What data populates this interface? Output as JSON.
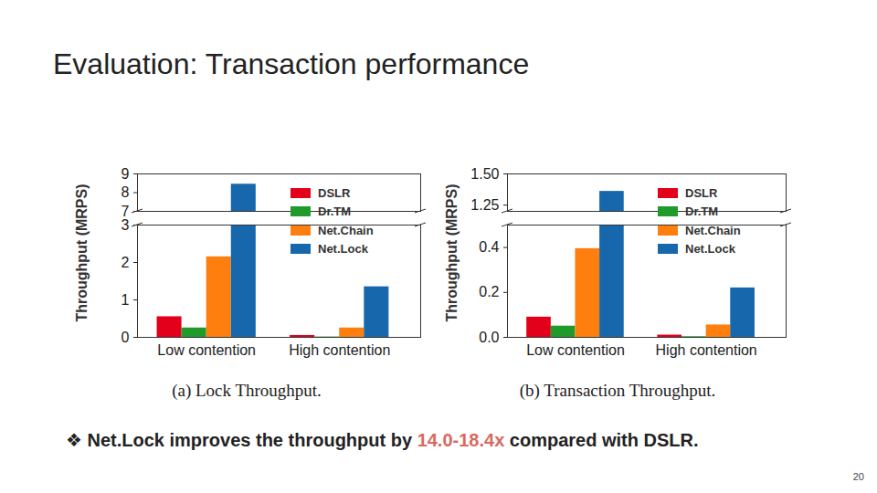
{
  "title": "Evaluation: Transaction performance",
  "note": {
    "text": "❖ Net.Lock improves the throughput by ",
    "highlight": "14.0-18.4x",
    "text_end": " compared with DSLR."
  },
  "page_number": 20,
  "chart_data": [
    {
      "type": "bar",
      "title": "(a) Lock Throughput.",
      "y_label": "Throughput (MRPS)",
      "categories": [
        "Low contention",
        "High contention"
      ],
      "series": [
        {
          "name": "DSLR",
          "color": "#e3001b",
          "values": [
            0.55,
            0.05
          ]
        },
        {
          "name": "Dr.TM",
          "color": "#1f9b2c",
          "values": [
            0.25,
            0.01
          ]
        },
        {
          "name": "Net.Chain",
          "color": "#ff7f0e",
          "values": [
            2.15,
            0.25
          ]
        },
        {
          "name": "Net.Lock",
          "color": "#1667ab",
          "values": [
            8.45,
            1.35
          ]
        }
      ],
      "legend": "upper right",
      "panels": [
        {
          "ylim": [
            7,
            9
          ],
          "yticks": [
            7,
            8,
            9
          ]
        },
        {
          "ylim": [
            0,
            3
          ],
          "yticks": [
            0,
            1,
            2,
            3
          ]
        }
      ]
    },
    {
      "type": "bar",
      "title": "(b) Transaction Throughput.",
      "y_label": "Throughput (MRPS)",
      "categories": [
        "Low contention",
        "High contention"
      ],
      "series": [
        {
          "name": "DSLR",
          "color": "#e3001b",
          "values": [
            0.09,
            0.01
          ]
        },
        {
          "name": "Dr.TM",
          "color": "#1f9b2c",
          "values": [
            0.05,
            0.003
          ]
        },
        {
          "name": "Net.Chain",
          "color": "#ff7f0e",
          "values": [
            0.395,
            0.055
          ]
        },
        {
          "name": "Net.Lock",
          "color": "#1667ab",
          "values": [
            1.36,
            0.22
          ]
        }
      ],
      "legend": "upper right",
      "panels": [
        {
          "ylim": [
            1.2,
            1.5
          ],
          "yticks": [
            {
              "value": 1.25,
              "label": "1.25"
            },
            {
              "value": 1.5,
              "label": "1.50"
            }
          ]
        },
        {
          "ylim": [
            0,
            0.5
          ],
          "yticks": [
            {
              "value": 0,
              "label": "0.0"
            },
            {
              "value": 0.2,
              "label": "0.2"
            },
            {
              "value": 0.4,
              "label": "0.4"
            }
          ]
        }
      ]
    }
  ]
}
